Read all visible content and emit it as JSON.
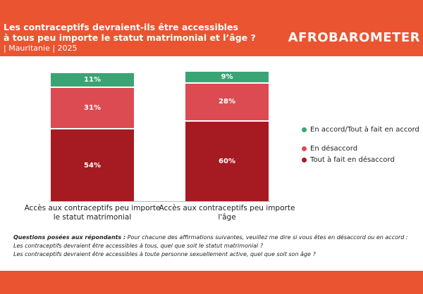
{
  "header": {
    "title": [
      "Les contraceptifs devraient-ils être accessibles",
      "à tous peu importe le statut matrimonial et l’âge ?"
    ],
    "subtitle": "| Mauritanie | 2025",
    "logo": "AFROBAROMETER"
  },
  "chart_data": {
    "type": "stacked-bar",
    "categories": [
      "Accès aux contraceptifs peu importe le statut matrimonial",
      "Accès aux contraceptifs peu importe l'âge"
    ],
    "series": [
      {
        "name": "Tout à fait en désaccord",
        "color": "#a51b21",
        "values": [
          54,
          60
        ],
        "value_labels": [
          "54%",
          "60%"
        ]
      },
      {
        "name": "En désaccord",
        "color": "#dc4b52",
        "values": [
          31,
          28
        ],
        "value_labels": [
          "31%",
          "28%"
        ]
      },
      {
        "name": "En accord/Tout à fait en accord",
        "color": "#3aa574",
        "values": [
          11,
          9
        ],
        "value_labels": [
          "11%",
          "9%"
        ]
      }
    ]
  },
  "note": {
    "label": "Questions posées aux répondants :",
    "lines": [
      "Pour chacune des affirmations suivantes, veuillez me dire si vous êtes en désaccord ou en accord :",
      "Les contraceptifs devraient être accessibles à tous, quel que soit le statut matrimonial ?",
      "Les contraceptifs devraient être accessibles à toute personne sexuellement active, quel que soit son âge ?"
    ]
  }
}
